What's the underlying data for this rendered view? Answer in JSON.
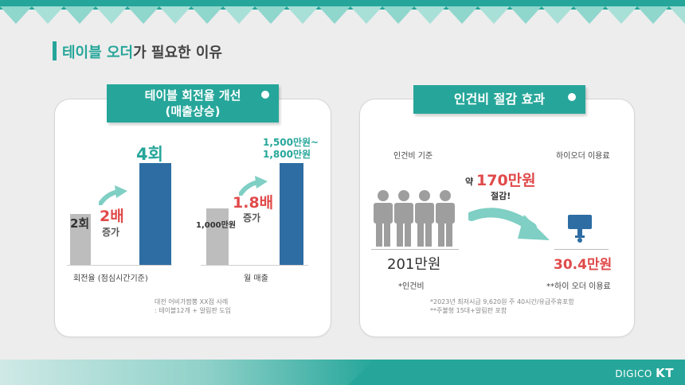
{
  "title": {
    "accent": "테이블 오더",
    "rest": "가 필요한 이유"
  },
  "left_card": {
    "banner_line1": "테이블 회전율 개선",
    "banner_line2": "(매출상승)",
    "chart1": {
      "before_value": "2회",
      "after_value": "4회",
      "multiplier": "2배",
      "increase": "증가",
      "xlabel": "회전율 (점심시간기준)"
    },
    "chart2": {
      "before_value": "1,000만원",
      "after_value_line1": "1,500만원~",
      "after_value_line2": "1,800만원",
      "multiplier": "1.8배",
      "increase": "증가",
      "xlabel": "월 매출"
    },
    "note_line1": "대전 어비가짬뽕 XX점 사례",
    "note_line2": ": 테이블12개 + 알림판 도입"
  },
  "right_card": {
    "banner": "인건비 절감 효과",
    "left_label": "인건비 기준",
    "right_label": "하이오더 이용료",
    "saving_prefix": "약",
    "saving_value": "170만원",
    "saving_suffix": "절감!",
    "labor_cost": "201만원",
    "labor_note": "*인건비",
    "fee_value": "30.4만원",
    "fee_note": "**하이 오더 이용료",
    "note_line1": "*2023년 최저시급 9,620원 주 40시간/유급주휴포함",
    "note_line2": "**주불형 15대+알림판 포함"
  },
  "brand": {
    "name": "DIGICO",
    "suffix": "KT"
  },
  "chart_data": [
    {
      "type": "bar",
      "categories": [
        "",
        ""
      ],
      "values": [
        2,
        4
      ],
      "xlabel": "회전율 (점심시간기준)"
    },
    {
      "type": "bar",
      "categories": [
        "",
        ""
      ],
      "values": [
        1000,
        1800
      ],
      "xlabel": "월 매출"
    }
  ],
  "colors": {
    "teal": "#26a69a",
    "blue": "#2d6da3",
    "red": "#e04a4a",
    "gray": "#bdbdbd"
  }
}
